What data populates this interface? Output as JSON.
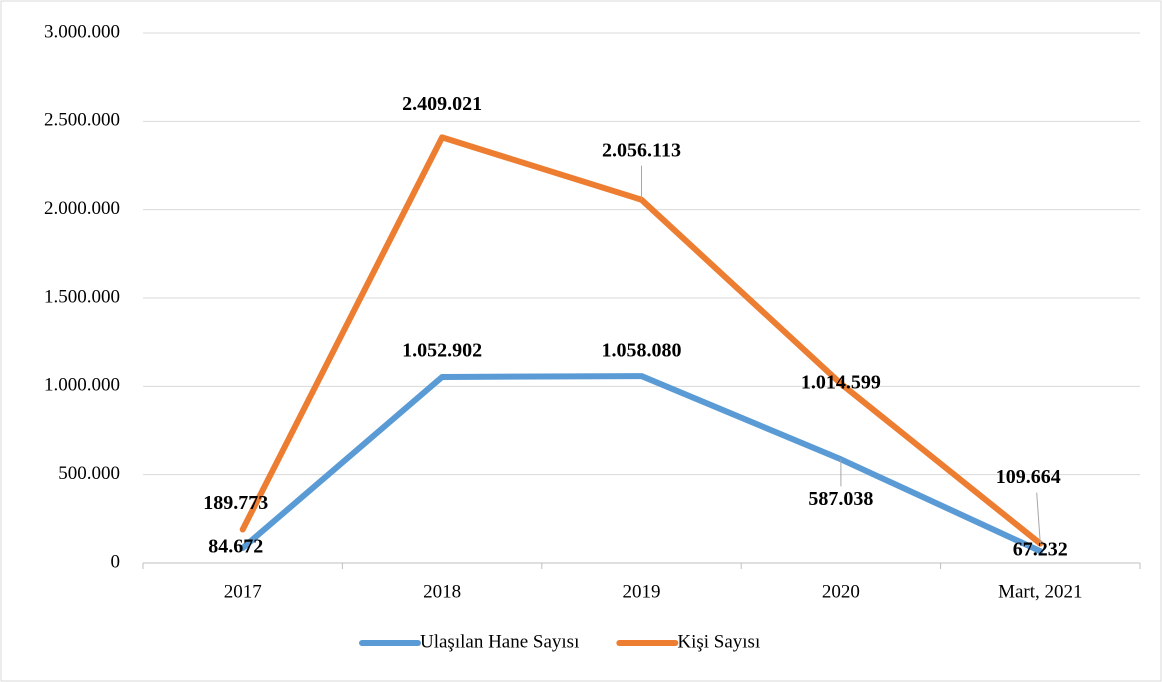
{
  "chart_data": {
    "type": "line",
    "categories": [
      "2017",
      "2018",
      "2019",
      "2020",
      "Mart, 2021"
    ],
    "series": [
      {
        "name": "Ulaşılan Hane Sayısı",
        "color": "#5b9bd5",
        "values": [
          84672,
          1052902,
          1058080,
          587038,
          67232
        ],
        "value_labels": [
          "84.672",
          "1.052.902",
          "1.058.080",
          "587.038",
          "67.232"
        ]
      },
      {
        "name": "Kişi Sayısı",
        "color": "#ed7d31",
        "values": [
          189773,
          2409021,
          2056113,
          1014599,
          109664
        ],
        "value_labels": [
          "189.773",
          "2.409.021",
          "2.056.113",
          "1.014.599",
          "109.664"
        ]
      }
    ],
    "ylim": [
      0,
      3000000
    ],
    "yticks": [
      0,
      {
        "value": 500000,
        "label": "500.000"
      },
      {
        "value": 1000000,
        "label": "1.000.000"
      },
      {
        "value": 1500000,
        "label": "1.500.000"
      },
      {
        "value": 2000000,
        "label": "2.000.000"
      },
      {
        "value": 2500000,
        "label": "2.500.000"
      },
      {
        "value": 3000000,
        "label": "3.000.000"
      }
    ],
    "grid": true,
    "legend": "bottom"
  }
}
